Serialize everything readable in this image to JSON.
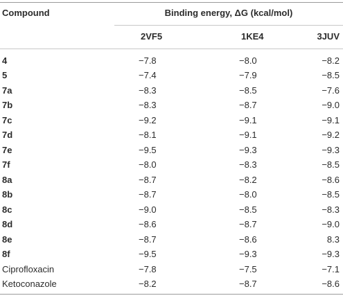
{
  "table": {
    "header": {
      "compound": "Compound",
      "group": "Binding energy, ΔG (kcal/mol)",
      "columns": [
        "2VF5",
        "1KE4",
        "3JUV"
      ]
    },
    "rows": [
      [
        "4",
        "−7.8",
        "−8.0",
        "−8.2"
      ],
      [
        "5",
        "−7.4",
        "−7.9",
        "−8.5"
      ],
      [
        "7a",
        "−8.3",
        "−8.5",
        "−7.6"
      ],
      [
        "7b",
        "−8.3",
        "−8.7",
        "−9.0"
      ],
      [
        "7c",
        "−9.2",
        "−9.1",
        "−9.1"
      ],
      [
        "7d",
        "−8.1",
        "−9.1",
        "−9.2"
      ],
      [
        "7e",
        "−9.5",
        "−9.3",
        "−9.3"
      ],
      [
        "7f",
        "−8.0",
        "−8.3",
        "−8.5"
      ],
      [
        "8a",
        "−8.7",
        "−8.2",
        "−8.6"
      ],
      [
        "8b",
        "−8.7",
        "−8.0",
        "−8.5"
      ],
      [
        "8c",
        "−9.0",
        "−8.5",
        "−8.3"
      ],
      [
        "8d",
        "−8.6",
        "−8.7",
        "−9.0"
      ],
      [
        "8e",
        "−8.7",
        "−8.6",
        "8.3"
      ],
      [
        "8f",
        "−9.5",
        "−9.3",
        "−9.3"
      ],
      [
        "Ciprofloxacin",
        "−7.8",
        "−7.5",
        "−7.1"
      ],
      [
        "Ketoconazole",
        "−8.2",
        "−8.7",
        "−8.6"
      ]
    ]
  }
}
